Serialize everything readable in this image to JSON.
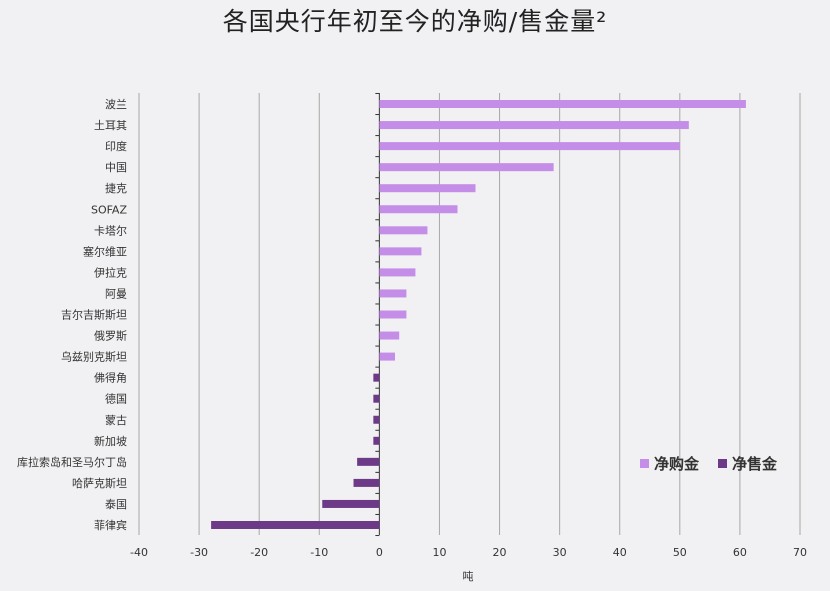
{
  "chart_data": {
    "type": "bar",
    "orientation": "horizontal",
    "title": "各国央行年初至今的净购/售金量²",
    "xlabel": "吨",
    "ylabel": "",
    "xlim": [
      -40,
      70
    ],
    "xticks": [
      -40,
      -30,
      -20,
      -10,
      0,
      10,
      20,
      30,
      40,
      50,
      60,
      70
    ],
    "grid": "vertical",
    "legend_position": "bottom-right",
    "categories": [
      "波兰",
      "土耳其",
      "印度",
      "中国",
      "捷克",
      "SOFAZ",
      "卡塔尔",
      "塞尔维亚",
      "伊拉克",
      "阿曼",
      "吉尔吉斯斯坦",
      "俄罗斯",
      "乌兹别克斯坦",
      "佛得角",
      "德国",
      "蒙古",
      "新加坡",
      "库拉索岛和圣马尔丁岛",
      "哈萨克斯坦",
      "泰国",
      "菲律宾"
    ],
    "values": [
      61,
      51.5,
      50,
      29,
      16,
      13,
      8,
      7,
      6,
      4.5,
      4.5,
      3.3,
      2.6,
      -1,
      -1,
      -1,
      -1,
      -3.7,
      -4.3,
      -9.5,
      -28
    ],
    "series": [
      {
        "name": "净购金",
        "color": "#c48ee8"
      },
      {
        "name": "净售金",
        "color": "#6c3a86"
      }
    ]
  }
}
